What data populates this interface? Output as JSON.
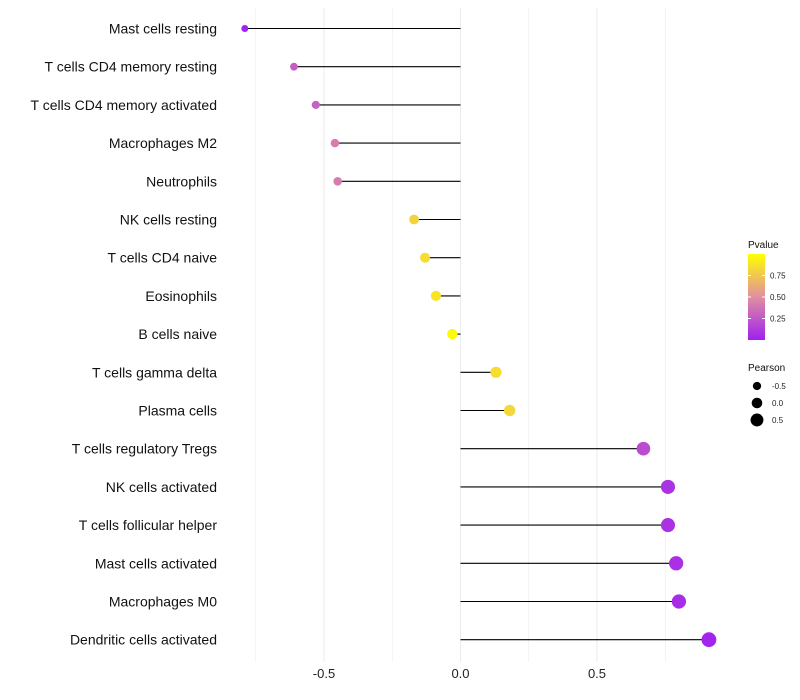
{
  "chart_data": {
    "type": "lollipop",
    "title": "",
    "xlabel": "",
    "ylabel": "",
    "xlim": [
      -0.9,
      1.0
    ],
    "x_ticks": [
      -0.5,
      0.0,
      0.5
    ],
    "x_tick_labels": [
      "-0.5",
      "0.0",
      "0.5"
    ],
    "grid": true,
    "categories": [
      "Mast cells resting",
      "T cells CD4 memory resting",
      "T cells CD4 memory activated",
      "Macrophages M2",
      "Neutrophils",
      "NK cells resting",
      "T cells CD4 naive",
      "Eosinophils",
      "B cells naive",
      "T cells gamma delta",
      "Plasma cells",
      "T cells regulatory  Tregs",
      "NK cells activated",
      "T cells follicular helper",
      "Mast cells activated",
      "Macrophages M0",
      "Dendritic cells activated"
    ],
    "values": [
      -0.79,
      -0.61,
      -0.53,
      -0.46,
      -0.45,
      -0.17,
      -0.13,
      -0.09,
      -0.03,
      0.13,
      0.18,
      0.67,
      0.76,
      0.76,
      0.79,
      0.8,
      0.91
    ],
    "pvalues": [
      0.02,
      0.28,
      0.3,
      0.42,
      0.42,
      0.8,
      0.85,
      0.88,
      0.98,
      0.85,
      0.82,
      0.2,
      0.08,
      0.08,
      0.07,
      0.06,
      0.02
    ],
    "legend": {
      "color": {
        "title": "Pvalue",
        "ticks": [
          0.75,
          0.5,
          0.25
        ],
        "tick_labels": [
          "0.75",
          "0.50",
          "0.25"
        ],
        "low_color": "#a020f0",
        "mid_color": "#e08fa0",
        "high_color": "#ffff00",
        "range": [
          0.0,
          1.0
        ]
      },
      "size": {
        "title": "Pearson",
        "values": [
          -0.5,
          0.0,
          0.5
        ],
        "labels": [
          "-0.5",
          "0.0",
          "0.5"
        ],
        "point_color": "#000000"
      },
      "placement": "right"
    },
    "colors": {
      "stem": "#000000",
      "grid": "#ebebeb"
    }
  }
}
